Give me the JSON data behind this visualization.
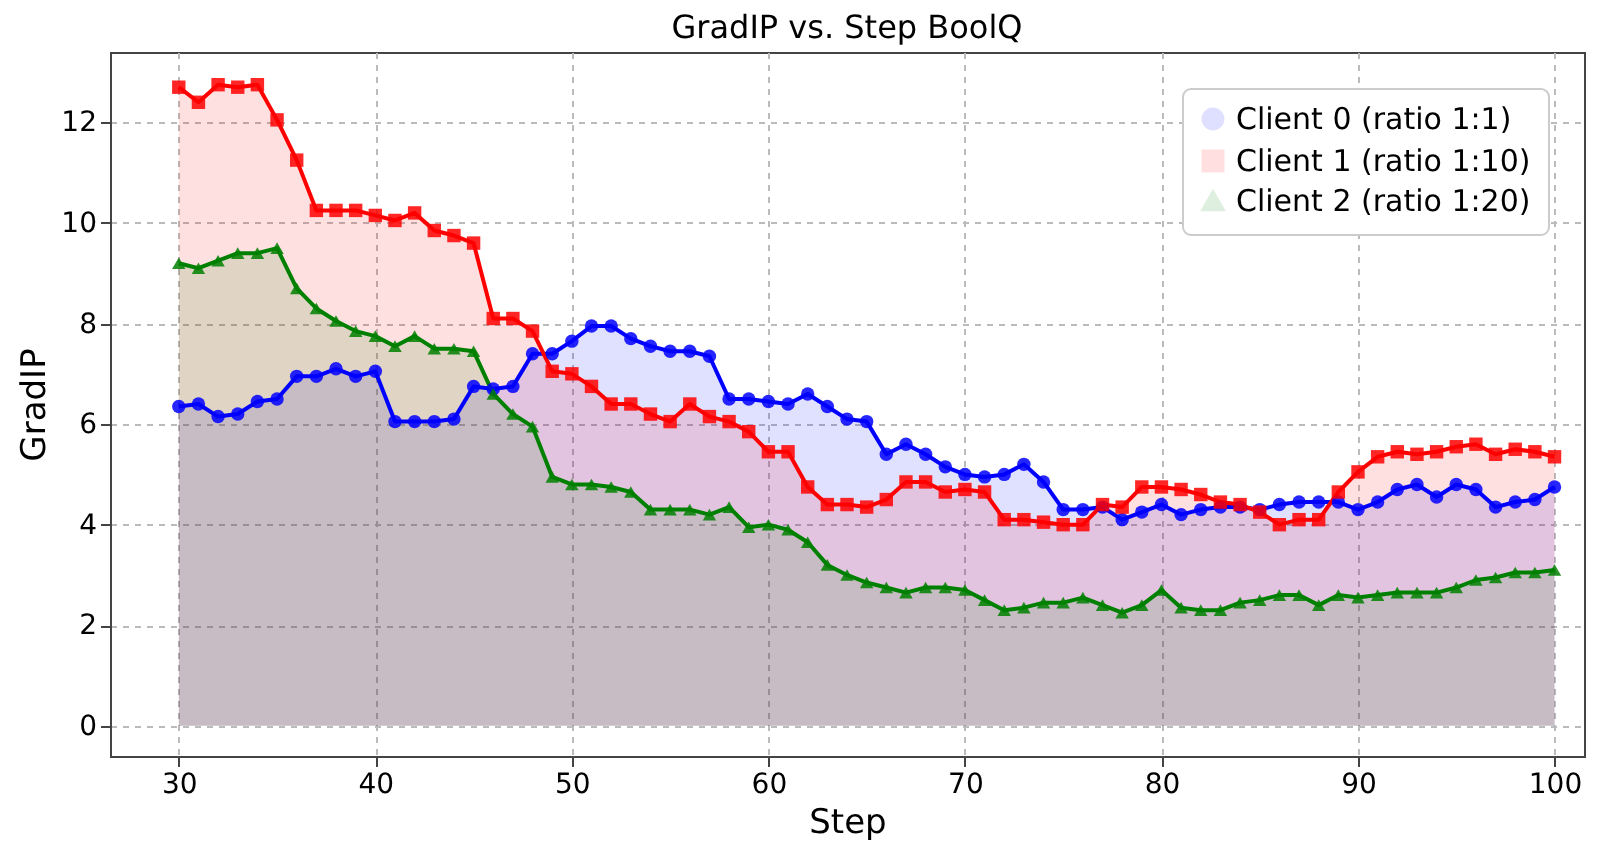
{
  "chart_data": {
    "type": "area",
    "title": "GradIP vs. Step BoolQ",
    "xlabel": "Step",
    "ylabel": "GradIP",
    "x": [
      30,
      31,
      32,
      33,
      34,
      35,
      36,
      37,
      38,
      39,
      40,
      41,
      42,
      43,
      44,
      45,
      46,
      47,
      48,
      49,
      50,
      51,
      52,
      53,
      54,
      55,
      56,
      57,
      58,
      59,
      60,
      61,
      62,
      63,
      64,
      65,
      66,
      67,
      68,
      69,
      70,
      71,
      72,
      73,
      74,
      75,
      76,
      77,
      78,
      79,
      80,
      81,
      82,
      83,
      84,
      85,
      86,
      87,
      88,
      89,
      90,
      91,
      92,
      93,
      94,
      95,
      96,
      97,
      98,
      99,
      100
    ],
    "series": [
      {
        "name": "Client 0 (ratio 1:1)",
        "color": "#0000ff",
        "marker": "circle",
        "values": [
          6.35,
          6.4,
          6.15,
          6.2,
          6.45,
          6.5,
          6.95,
          6.95,
          7.1,
          6.95,
          7.05,
          6.05,
          6.05,
          6.05,
          6.1,
          6.75,
          6.7,
          6.75,
          7.4,
          7.4,
          7.65,
          7.95,
          7.95,
          7.7,
          7.55,
          7.45,
          7.45,
          7.35,
          6.5,
          6.5,
          6.45,
          6.4,
          6.6,
          6.35,
          6.1,
          6.05,
          5.4,
          5.6,
          5.4,
          5.15,
          5.0,
          4.95,
          5.0,
          5.2,
          4.85,
          4.3,
          4.3,
          4.35,
          4.1,
          4.25,
          4.4,
          4.2,
          4.3,
          4.35,
          4.35,
          4.3,
          4.4,
          4.45,
          4.45,
          4.45,
          4.3,
          4.45,
          4.7,
          4.8,
          4.55,
          4.8,
          4.7,
          4.35,
          4.45,
          4.5,
          4.75
        ]
      },
      {
        "name": "Client 1 (ratio 1:10)",
        "color": "#ff0000",
        "marker": "square",
        "values": [
          12.7,
          12.4,
          12.75,
          12.7,
          12.75,
          12.05,
          11.25,
          10.25,
          10.25,
          10.25,
          10.15,
          10.05,
          10.2,
          9.85,
          9.75,
          9.6,
          8.1,
          8.1,
          7.85,
          7.05,
          7.0,
          6.75,
          6.4,
          6.4,
          6.2,
          6.05,
          6.4,
          6.15,
          6.05,
          5.85,
          5.45,
          5.45,
          4.75,
          4.4,
          4.4,
          4.35,
          4.5,
          4.85,
          4.85,
          4.65,
          4.7,
          4.65,
          4.1,
          4.1,
          4.05,
          4.0,
          4.0,
          4.4,
          4.35,
          4.75,
          4.75,
          4.7,
          4.6,
          4.45,
          4.4,
          4.25,
          4.0,
          4.1,
          4.1,
          4.65,
          5.05,
          5.35,
          5.45,
          5.4,
          5.45,
          5.55,
          5.6,
          5.4,
          5.5,
          5.45,
          5.35
        ]
      },
      {
        "name": "Client 2 (ratio 1:20)",
        "color": "#008000",
        "marker": "triangle",
        "values": [
          9.2,
          9.1,
          9.25,
          9.4,
          9.4,
          9.5,
          8.7,
          8.3,
          8.05,
          7.85,
          7.75,
          7.55,
          7.75,
          7.5,
          7.5,
          7.45,
          6.6,
          6.2,
          5.95,
          4.95,
          4.8,
          4.8,
          4.75,
          4.65,
          4.3,
          4.3,
          4.3,
          4.2,
          4.35,
          3.95,
          4.0,
          3.9,
          3.65,
          3.2,
          3.0,
          2.85,
          2.75,
          2.65,
          2.75,
          2.75,
          2.7,
          2.5,
          2.3,
          2.35,
          2.45,
          2.45,
          2.55,
          2.4,
          2.25,
          2.4,
          2.7,
          2.35,
          2.3,
          2.3,
          2.45,
          2.5,
          2.6,
          2.6,
          2.4,
          2.6,
          2.55,
          2.6,
          2.65,
          2.65,
          2.65,
          2.75,
          2.9,
          2.95,
          3.05,
          3.05,
          3.1
        ]
      }
    ],
    "xlim": [
      26.5,
      101.5
    ],
    "xticks": [
      30,
      40,
      50,
      60,
      70,
      80,
      90,
      100
    ],
    "ylim": [
      -0.6,
      13.4
    ],
    "yticks": [
      0,
      2,
      4,
      6,
      8,
      10,
      12
    ],
    "grid": true,
    "legend": "top right",
    "line_style": "solid"
  }
}
